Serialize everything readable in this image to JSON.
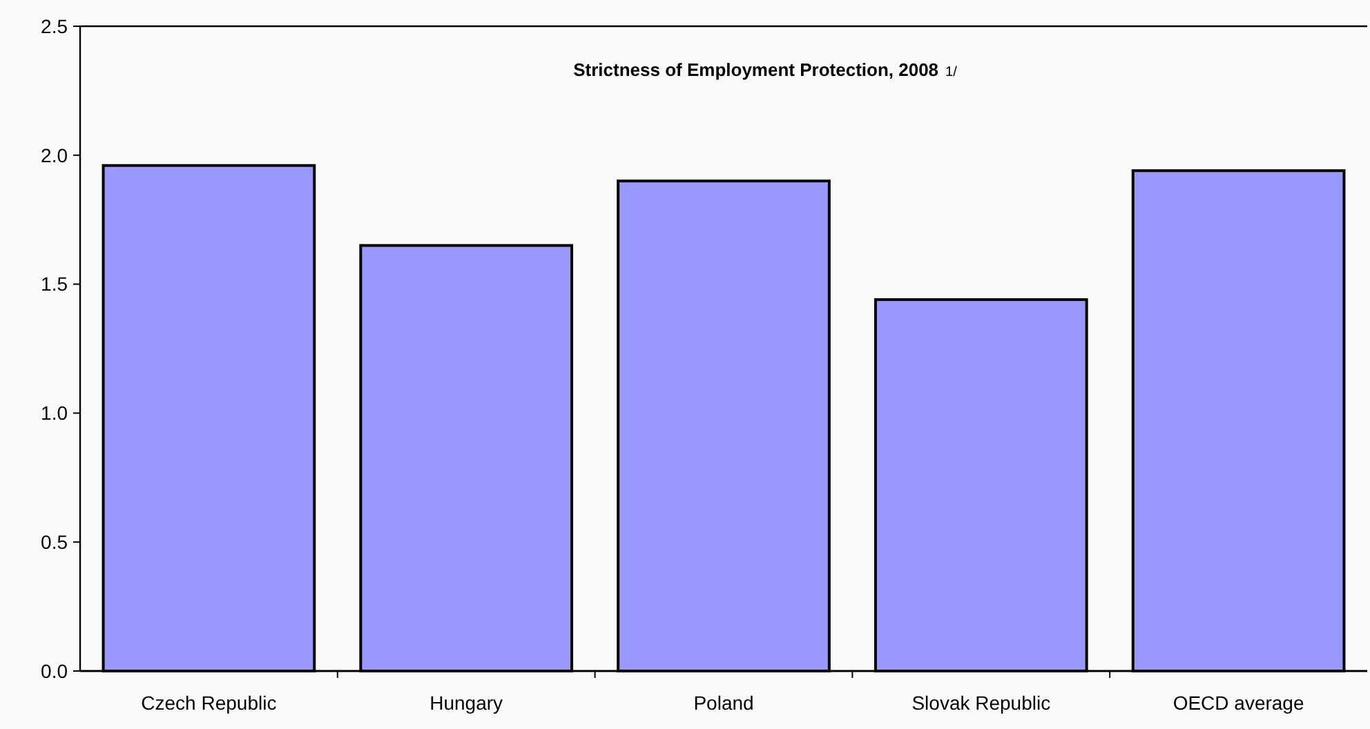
{
  "chart_data": {
    "type": "bar",
    "title": "Strictness of Employment Protection, 2008",
    "annotations": [
      "1/"
    ],
    "categories": [
      "Czech Republic",
      "Hungary",
      "Poland",
      "Slovak Republic",
      "OECD average"
    ],
    "values": [
      1.96,
      1.65,
      1.9,
      1.44,
      1.94
    ],
    "color": "#9999ff",
    "ylim": [
      0,
      2.5
    ],
    "yticks": [
      {
        "value": 0,
        "label": "0.0"
      },
      {
        "value": 0.5,
        "label": "0.5"
      },
      {
        "value": 1,
        "label": "1.0"
      },
      {
        "value": 1.5,
        "label": "1.5"
      },
      {
        "value": 2,
        "label": "2.0"
      },
      {
        "value": 2.5,
        "label": "2.5"
      }
    ],
    "grid": false
  }
}
